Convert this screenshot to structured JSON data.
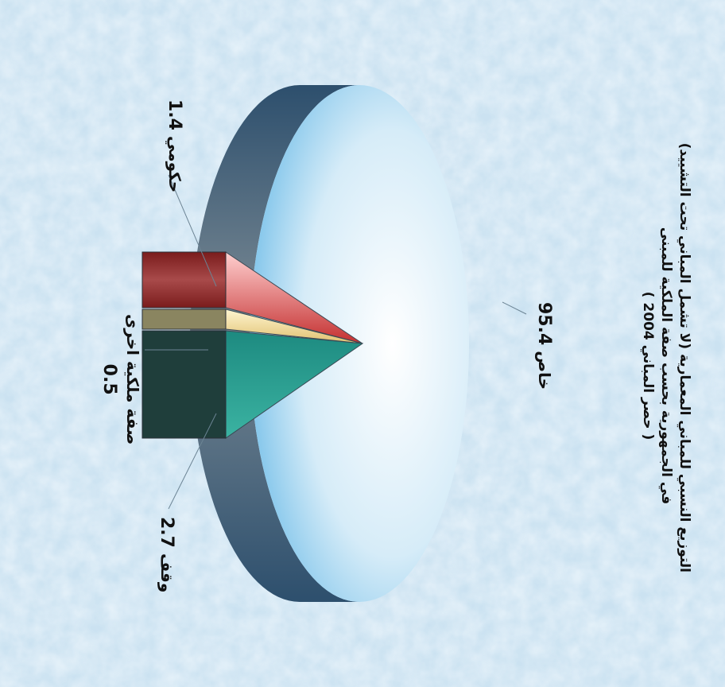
{
  "chart_data": {
    "type": "pie",
    "title_lines": [
      "التوزيع النسبي للمباني المعمارية (لا تشمل المباني تحت التشييد)",
      "في الجمهورية بحسب صفة الملكية للمبنى",
      "( حصر المباني 2004 )"
    ],
    "slices": [
      {
        "label": "خاص",
        "value": 95.4,
        "value_text": "95.4",
        "color": "#dff1fb"
      },
      {
        "label": "حكومي",
        "value": 1.4,
        "value_text": "1.4",
        "color": "#e8a0a0"
      },
      {
        "label": "صفة ملكية اخرى",
        "value": 0.5,
        "value_text": "0.5",
        "color": "#efe3b0"
      },
      {
        "label": "وقف",
        "value": 2.7,
        "value_text": "2.7",
        "color": "#2a9a8a"
      }
    ]
  }
}
